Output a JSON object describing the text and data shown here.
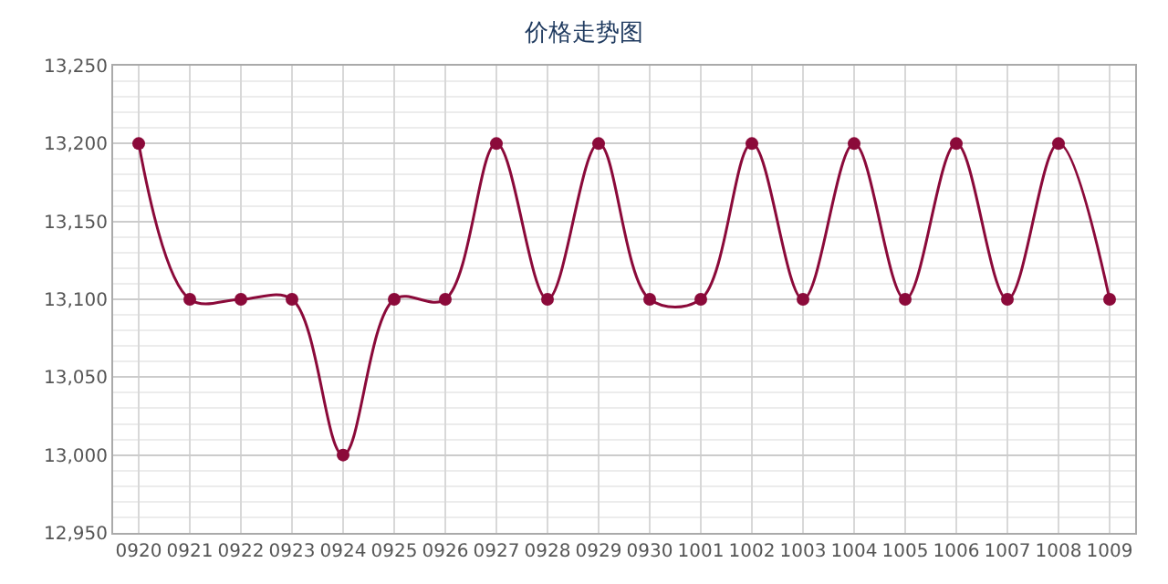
{
  "chart_data": {
    "type": "line",
    "title": "价格走势图",
    "categories": [
      "0920",
      "0921",
      "0922",
      "0923",
      "0924",
      "0925",
      "0926",
      "0927",
      "0928",
      "0929",
      "0930",
      "1001",
      "1002",
      "1003",
      "1004",
      "1005",
      "1006",
      "1007",
      "1008",
      "1009"
    ],
    "series": [
      {
        "color": "#8b0a3a",
        "values": [
          13200,
          13100,
          13100,
          13100,
          13000,
          13100,
          13100,
          13200,
          13100,
          13200,
          13100,
          13100,
          13200,
          13100,
          13200,
          13100,
          13200,
          13100,
          13200,
          13100
        ]
      }
    ],
    "ylim": [
      12950,
      13250
    ],
    "yticks": [
      {
        "value": 12950,
        "label": "12,950"
      },
      {
        "value": 13000,
        "label": "13,000"
      },
      {
        "value": 13050,
        "label": "13,050"
      },
      {
        "value": 13100,
        "label": "13,100"
      },
      {
        "value": 13150,
        "label": "13,150"
      },
      {
        "value": 13200,
        "label": "13,200"
      },
      {
        "value": 13250,
        "label": "13,250"
      }
    ],
    "grid": true,
    "legend": false,
    "marker": "circle",
    "line_style": "solid"
  }
}
